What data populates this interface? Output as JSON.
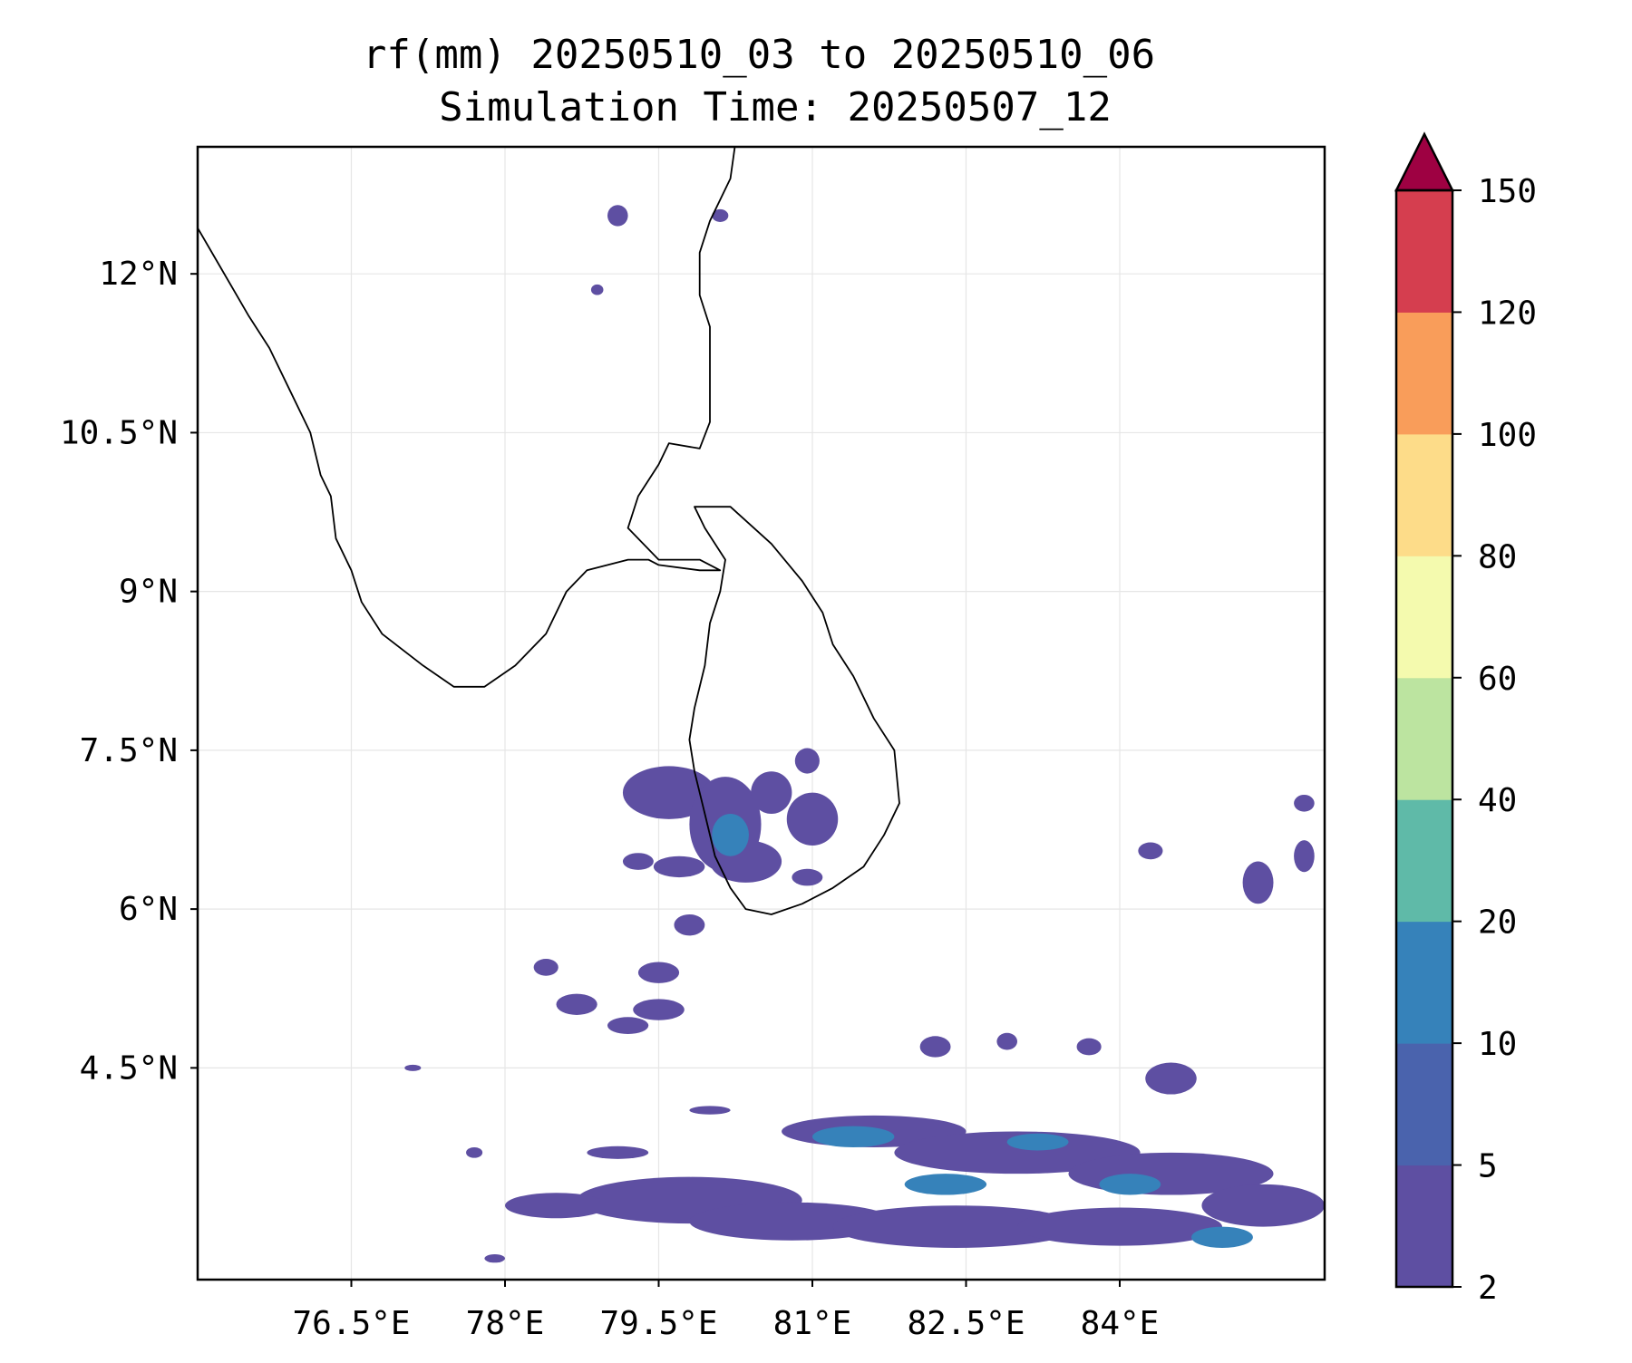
{
  "title_line1": "rf(mm) 20250510_03 to 20250510_06",
  "title_line2": "Simulation Time: 20250507_12",
  "map": {
    "lon_range": [
      75.0,
      86.0
    ],
    "lat_range": [
      2.5,
      13.2
    ],
    "lon_ticks": [
      {
        "value": 76.5,
        "label": "76.5°E"
      },
      {
        "value": 78.0,
        "label": "78°E"
      },
      {
        "value": 79.5,
        "label": "79.5°E"
      },
      {
        "value": 81.0,
        "label": "81°E"
      },
      {
        "value": 82.5,
        "label": "82.5°E"
      },
      {
        "value": 84.0,
        "label": "84°E"
      }
    ],
    "lat_ticks": [
      {
        "value": 12.0,
        "label": "12°N"
      },
      {
        "value": 10.5,
        "label": "10.5°N"
      },
      {
        "value": 9.0,
        "label": "9°N"
      },
      {
        "value": 7.5,
        "label": "7.5°N"
      },
      {
        "value": 6.0,
        "label": "6°N"
      },
      {
        "value": 4.5,
        "label": "4.5°N"
      }
    ],
    "grid": true,
    "india_coast": [
      [
        74.9,
        12.6
      ],
      [
        75.2,
        12.1
      ],
      [
        75.5,
        11.6
      ],
      [
        75.7,
        11.3
      ],
      [
        75.9,
        10.9
      ],
      [
        76.1,
        10.5
      ],
      [
        76.2,
        10.1
      ],
      [
        76.3,
        9.9
      ],
      [
        76.35,
        9.5
      ],
      [
        76.5,
        9.2
      ],
      [
        76.6,
        8.9
      ],
      [
        76.8,
        8.6
      ],
      [
        77.2,
        8.3
      ],
      [
        77.5,
        8.1
      ],
      [
        77.8,
        8.1
      ],
      [
        78.1,
        8.3
      ],
      [
        78.4,
        8.6
      ],
      [
        78.6,
        9.0
      ],
      [
        78.8,
        9.2
      ],
      [
        79.2,
        9.3
      ],
      [
        79.4,
        9.3
      ],
      [
        79.5,
        9.25
      ],
      [
        79.9,
        9.2
      ],
      [
        80.1,
        9.2
      ],
      [
        79.9,
        9.3
      ],
      [
        79.5,
        9.3
      ],
      [
        79.2,
        9.6
      ],
      [
        79.3,
        9.9
      ],
      [
        79.5,
        10.2
      ],
      [
        79.6,
        10.4
      ],
      [
        79.9,
        10.35
      ],
      [
        80.0,
        10.6
      ],
      [
        80.0,
        11.0
      ],
      [
        80.0,
        11.5
      ],
      [
        79.9,
        11.8
      ],
      [
        79.9,
        12.2
      ],
      [
        80.0,
        12.5
      ],
      [
        80.2,
        12.9
      ],
      [
        80.25,
        13.25
      ]
    ],
    "srilanka_coast": [
      [
        79.85,
        9.8
      ],
      [
        80.2,
        9.8
      ],
      [
        80.6,
        9.45
      ],
      [
        80.9,
        9.1
      ],
      [
        81.1,
        8.8
      ],
      [
        81.2,
        8.5
      ],
      [
        81.4,
        8.2
      ],
      [
        81.6,
        7.8
      ],
      [
        81.8,
        7.5
      ],
      [
        81.85,
        7.0
      ],
      [
        81.7,
        6.7
      ],
      [
        81.5,
        6.4
      ],
      [
        81.2,
        6.2
      ],
      [
        80.9,
        6.05
      ],
      [
        80.6,
        5.95
      ],
      [
        80.35,
        6.0
      ],
      [
        80.2,
        6.2
      ],
      [
        80.05,
        6.5
      ],
      [
        79.95,
        6.9
      ],
      [
        79.85,
        7.3
      ],
      [
        79.8,
        7.6
      ],
      [
        79.85,
        7.9
      ],
      [
        79.95,
        8.3
      ],
      [
        80.0,
        8.7
      ],
      [
        80.1,
        9.0
      ],
      [
        80.15,
        9.3
      ],
      [
        79.95,
        9.6
      ]
    ]
  },
  "rain_cells": [
    [
      79.6,
      7.1,
      0.45,
      0.25,
      "c1"
    ],
    [
      80.15,
      6.8,
      0.35,
      0.45,
      "c1"
    ],
    [
      80.35,
      6.45,
      0.35,
      0.2,
      "c1"
    ],
    [
      80.2,
      6.7,
      0.18,
      0.2,
      "c2"
    ],
    [
      80.6,
      7.1,
      0.2,
      0.2,
      "c1"
    ],
    [
      81.0,
      6.85,
      0.25,
      0.25,
      "c1"
    ],
    [
      80.95,
      7.4,
      0.12,
      0.12,
      "c1"
    ],
    [
      79.3,
      6.45,
      0.15,
      0.08,
      "c1"
    ],
    [
      79.7,
      6.4,
      0.25,
      0.1,
      "c1"
    ],
    [
      79.8,
      5.85,
      0.15,
      0.1,
      "c1"
    ],
    [
      80.95,
      6.3,
      0.15,
      0.08,
      "c1"
    ],
    [
      79.5,
      5.4,
      0.2,
      0.1,
      "c1"
    ],
    [
      78.4,
      5.45,
      0.12,
      0.08,
      "c1"
    ],
    [
      78.7,
      5.1,
      0.2,
      0.1,
      "c1"
    ],
    [
      79.5,
      5.05,
      0.25,
      0.1,
      "c1"
    ],
    [
      79.2,
      4.9,
      0.2,
      0.08,
      "c1"
    ],
    [
      82.2,
      4.7,
      0.15,
      0.1,
      "c1"
    ],
    [
      82.9,
      4.75,
      0.1,
      0.08,
      "c1"
    ],
    [
      83.7,
      4.7,
      0.12,
      0.08,
      "c1"
    ],
    [
      84.5,
      4.4,
      0.25,
      0.15,
      "c1"
    ],
    [
      85.35,
      6.25,
      0.15,
      0.2,
      "c1"
    ],
    [
      84.3,
      6.55,
      0.12,
      0.08,
      "c1"
    ],
    [
      85.8,
      6.5,
      0.1,
      0.15,
      "c1"
    ],
    [
      85.8,
      7.0,
      0.1,
      0.08,
      "c1"
    ],
    [
      77.1,
      4.5,
      0.08,
      0.03,
      "c1"
    ],
    [
      80.0,
      4.1,
      0.2,
      0.04,
      "c1"
    ],
    [
      81.6,
      3.9,
      0.9,
      0.15,
      "c1"
    ],
    [
      83.0,
      3.7,
      1.2,
      0.2,
      "c1"
    ],
    [
      84.5,
      3.5,
      1.0,
      0.2,
      "c1"
    ],
    [
      79.8,
      3.25,
      1.1,
      0.22,
      "c1"
    ],
    [
      80.8,
      3.05,
      1.0,
      0.18,
      "c1"
    ],
    [
      82.4,
      3.0,
      1.2,
      0.2,
      "c1"
    ],
    [
      84.0,
      3.0,
      1.0,
      0.18,
      "c1"
    ],
    [
      85.4,
      3.2,
      0.6,
      0.2,
      "c1"
    ],
    [
      78.5,
      3.2,
      0.5,
      0.12,
      "c1"
    ],
    [
      79.1,
      3.7,
      0.3,
      0.06,
      "c1"
    ],
    [
      77.7,
      3.7,
      0.08,
      0.05,
      "c1"
    ],
    [
      77.9,
      2.7,
      0.1,
      0.04,
      "c1"
    ],
    [
      81.4,
      3.85,
      0.4,
      0.1,
      "c2"
    ],
    [
      82.3,
      3.4,
      0.4,
      0.1,
      "c2"
    ],
    [
      83.2,
      3.8,
      0.3,
      0.08,
      "c2"
    ],
    [
      84.1,
      3.4,
      0.3,
      0.1,
      "c2"
    ],
    [
      85.0,
      2.9,
      0.3,
      0.1,
      "c2"
    ],
    [
      79.1,
      12.55,
      0.1,
      0.1,
      "c1"
    ],
    [
      80.1,
      12.55,
      0.08,
      0.06,
      "c1"
    ],
    [
      78.9,
      11.85,
      0.06,
      0.05,
      "c1"
    ]
  ],
  "colorbar": {
    "levels": [
      2,
      5,
      10,
      20,
      40,
      60,
      80,
      100,
      120,
      150
    ],
    "tick_labels": [
      "2",
      "5",
      "10",
      "20",
      "40",
      "60",
      "80",
      "100",
      "120",
      "150"
    ],
    "colors": [
      "#5e4fa2",
      "#4a63ad",
      "#3682ba",
      "#5fbaa8",
      "#bce4a0",
      "#f4faae",
      "#fddc89",
      "#f99d5a",
      "#d53e4f"
    ],
    "extend_max_color": "#9e0142"
  },
  "colors": {
    "c1": "#5e4fa2",
    "c2": "#3682ba",
    "coast": "#000000",
    "grid": "#e6e6e6"
  }
}
